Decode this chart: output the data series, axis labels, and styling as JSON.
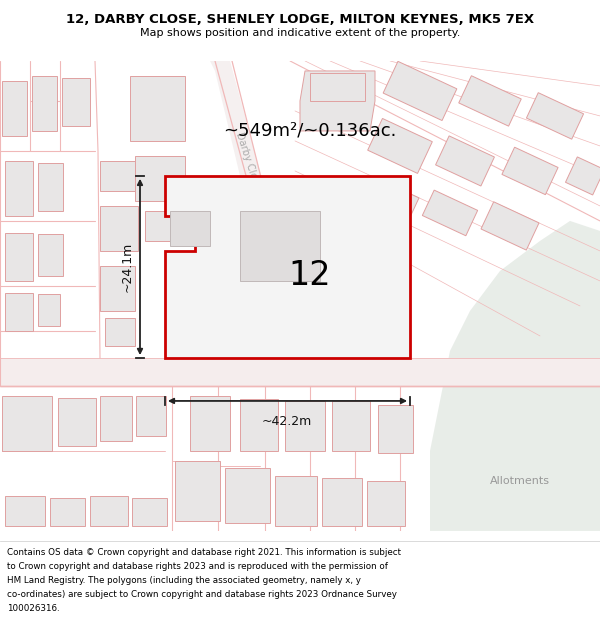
{
  "title": "12, DARBY CLOSE, SHENLEY LODGE, MILTON KEYNES, MK5 7EX",
  "subtitle": "Map shows position and indicative extent of the property.",
  "footer_lines": [
    "Contains OS data © Crown copyright and database right 2021. This information is subject",
    "to Crown copyright and database rights 2023 and is reproduced with the permission of",
    "HM Land Registry. The polygons (including the associated geometry, namely x, y",
    "co-ordinates) are subject to Crown copyright and database rights 2023 Ordnance Survey",
    "100026316."
  ],
  "area_label": "~549m²/~0.136ac.",
  "number_label": "12",
  "width_label": "~42.2m",
  "height_label": "~24.1m",
  "allotments_label": "Allotments",
  "map_bg": "#fafafa",
  "building_fill": "#e8e6e6",
  "building_edge": "#e0a0a0",
  "plot_fill": "#f4f4f4",
  "plot_edge": "#cc0000",
  "green_fill": "#e8ede8",
  "road_line": "#f0b8b8",
  "darby_road_fill": "#f5f0f0",
  "darby_road_label": "#aaaaaa",
  "arrow_color": "#222222",
  "text_color": "#111111",
  "dim_text_color": "#999999"
}
